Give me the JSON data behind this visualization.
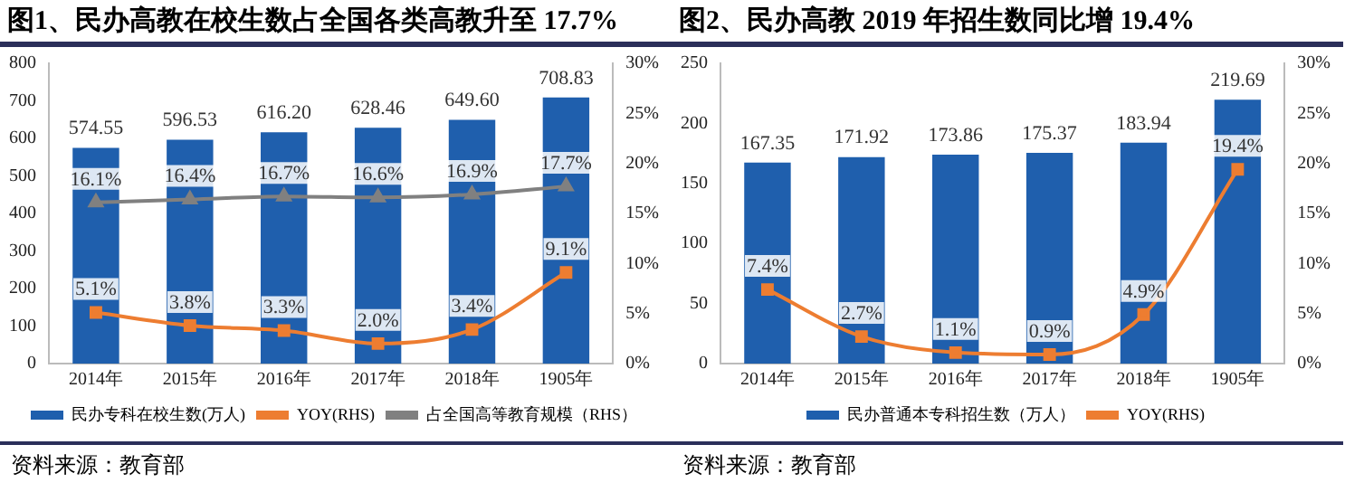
{
  "chart_data": [
    {
      "type": "bar",
      "title": "图1、民办高教在校生数占全国各类高教升至 17.7%",
      "categories": [
        "2014年",
        "2015年",
        "2016年",
        "2017年",
        "2018年",
        "1905年"
      ],
      "ylim": [
        0,
        800
      ],
      "yticks": [
        0,
        100,
        200,
        300,
        400,
        500,
        600,
        700,
        800
      ],
      "y2lim": [
        0,
        30
      ],
      "y2ticks": [
        {
          "value": 0,
          "label": "0%"
        },
        {
          "value": 5,
          "label": "5%"
        },
        {
          "value": 10,
          "label": "10%"
        },
        {
          "value": 15,
          "label": "15%"
        },
        {
          "value": 20,
          "label": "20%"
        },
        {
          "value": 25,
          "label": "25%"
        },
        {
          "value": 30,
          "label": "30%"
        }
      ],
      "grid": false,
      "legend": "bottom",
      "annotations": [
        "资料来源：教育部"
      ],
      "series": [
        {
          "name": "民办专科在校生数(万人)",
          "color": "#1f5fad",
          "values": [
            574.55,
            596.53,
            616.2,
            628.46,
            649.6,
            708.83
          ],
          "value_labels": [
            "574.55",
            "596.53",
            "616.20",
            "628.46",
            "649.60",
            "708.83"
          ]
        },
        {
          "name": "YOY(RHS)",
          "type": "line",
          "axis": "y2",
          "color": "#ed7d31",
          "marker": "square",
          "line_style": "solid",
          "values": [
            5.1,
            3.8,
            3.3,
            2.0,
            3.4,
            9.1
          ],
          "value_labels": [
            "5.1%",
            "3.8%",
            "3.3%",
            "2.0%",
            "3.4%",
            "9.1%"
          ]
        },
        {
          "name": "占全国高等教育规模（RHS）",
          "type": "line",
          "axis": "y2",
          "color": "#808080",
          "marker": "triangle",
          "line_style": "solid",
          "values": [
            16.1,
            16.4,
            16.7,
            16.6,
            16.9,
            17.7
          ],
          "value_labels": [
            "16.1%",
            "16.4%",
            "16.7%",
            "16.6%",
            "16.9%",
            "17.7%"
          ]
        }
      ]
    },
    {
      "type": "bar",
      "title": "图2、民办高教 2019 年招生数同比增 19.4%",
      "categories": [
        "2014年",
        "2015年",
        "2016年",
        "2017年",
        "2018年",
        "1905年"
      ],
      "ylim": [
        0,
        250
      ],
      "yticks": [
        0,
        50,
        100,
        150,
        200,
        250
      ],
      "y2lim": [
        0,
        30
      ],
      "y2ticks": [
        {
          "value": 0,
          "label": "0%"
        },
        {
          "value": 5,
          "label": "5%"
        },
        {
          "value": 10,
          "label": "10%"
        },
        {
          "value": 15,
          "label": "15%"
        },
        {
          "value": 20,
          "label": "20%"
        },
        {
          "value": 25,
          "label": "25%"
        },
        {
          "value": 30,
          "label": "30%"
        }
      ],
      "grid": false,
      "legend": "bottom",
      "annotations": [
        "资料来源：教育部"
      ],
      "series": [
        {
          "name": "民办普通本专科招生数（万人）",
          "color": "#1f5fad",
          "values": [
            167.35,
            171.92,
            173.86,
            175.37,
            183.94,
            219.69
          ],
          "value_labels": [
            "167.35",
            "171.92",
            "173.86",
            "175.37",
            "183.94",
            "219.69"
          ]
        },
        {
          "name": "YOY(RHS)",
          "type": "line",
          "axis": "y2",
          "color": "#ed7d31",
          "marker": "square",
          "line_style": "solid",
          "values": [
            7.4,
            2.7,
            1.1,
            0.9,
            4.9,
            19.4
          ],
          "value_labels": [
            "7.4%",
            "2.7%",
            "1.1%",
            "0.9%",
            "4.9%",
            "19.4%"
          ]
        }
      ]
    }
  ]
}
